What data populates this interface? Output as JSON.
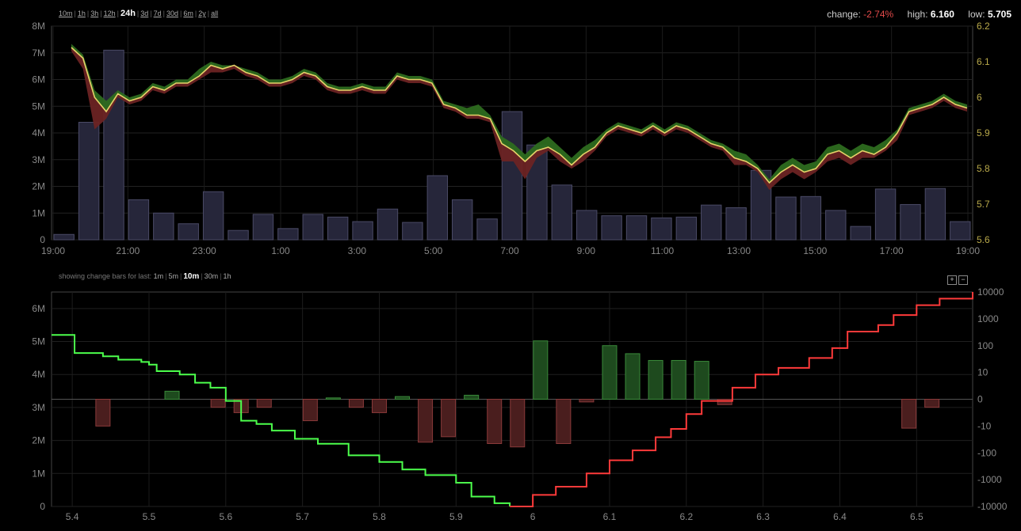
{
  "range_selector": {
    "prefix": "",
    "options": [
      "10m",
      "1h",
      "3h",
      "12h",
      "24h",
      "3d",
      "7d",
      "30d",
      "6m",
      "2y",
      "all"
    ],
    "active": "24h"
  },
  "stats": {
    "change_label": "change:",
    "change_value": "-2.74%",
    "high_label": "high:",
    "high_value": "6.160",
    "low_label": "low:",
    "low_value": "5.705"
  },
  "change_bars": {
    "label": "showing change bars for last:",
    "options": [
      "1m",
      "5m",
      "10m",
      "30m",
      "1h"
    ],
    "active": "10m"
  },
  "zoom": {
    "plus": "+",
    "minus": "−"
  },
  "colors": {
    "price_line": "#e6d36a",
    "band_up": "#2d6b1f",
    "band_down": "#6b2323",
    "volume_bar": "#26263a",
    "bid_line": "#4cff4c",
    "ask_line": "#ff3a3a",
    "change_up": "#1e4a1e",
    "change_down": "#4a1e1e"
  },
  "chart_data": [
    {
      "type": "line",
      "title": "",
      "series_kind": "price + volume",
      "x_ticks": [
        "19:00",
        "21:00",
        "23:00",
        "1:00",
        "3:00",
        "5:00",
        "7:00",
        "9:00",
        "11:00",
        "13:00",
        "15:00",
        "17:00",
        "19:00"
      ],
      "volume_axis_ticks": [
        "0",
        "1M",
        "2M",
        "3M",
        "4M",
        "5M",
        "6M",
        "7M",
        "8M"
      ],
      "price_axis_ticks": [
        "5.6",
        "5.7",
        "5.8",
        "5.9",
        "6",
        "6.1",
        "6.2"
      ],
      "volume_ylim": [
        0,
        8000000
      ],
      "price_ylim": [
        5.6,
        6.2
      ],
      "volume_values": [
        0.2,
        4.4,
        7.1,
        1.5,
        1.0,
        0.6,
        1.8,
        0.35,
        0.95,
        0.42,
        0.95,
        0.85,
        0.68,
        1.15,
        0.65,
        2.4,
        1.5,
        0.78,
        4.8,
        3.55,
        2.05,
        1.1,
        0.9,
        0.9,
        0.82,
        0.85,
        1.3,
        1.2,
        2.6,
        1.6,
        1.62,
        1.1,
        0.5,
        1.9,
        1.32,
        1.92,
        0.68
      ],
      "price_values": [
        6.14,
        6.11,
        6.0,
        5.96,
        6.01,
        5.99,
        6.0,
        6.03,
        6.02,
        6.04,
        6.04,
        6.06,
        6.09,
        6.08,
        6.09,
        6.07,
        6.06,
        6.04,
        6.04,
        6.05,
        6.07,
        6.06,
        6.03,
        6.02,
        6.02,
        6.03,
        6.02,
        6.02,
        6.06,
        6.05,
        6.05,
        6.04,
        5.98,
        5.97,
        5.95,
        5.95,
        5.94,
        5.87,
        5.85,
        5.82,
        5.85,
        5.86,
        5.84,
        5.81,
        5.84,
        5.86,
        5.9,
        5.92,
        5.91,
        5.9,
        5.92,
        5.9,
        5.92,
        5.91,
        5.89,
        5.87,
        5.86,
        5.83,
        5.82,
        5.8,
        5.76,
        5.79,
        5.81,
        5.79,
        5.8,
        5.84,
        5.85,
        5.83,
        5.85,
        5.84,
        5.86,
        5.9,
        5.96,
        5.97,
        5.98,
        6.0,
        5.98,
        5.97
      ],
      "band_high": [
        6.15,
        6.12,
        6.02,
        5.99,
        6.02,
        6.0,
        6.01,
        6.04,
        6.03,
        6.05,
        6.05,
        6.08,
        6.1,
        6.09,
        6.09,
        6.08,
        6.07,
        6.05,
        6.05,
        6.06,
        6.08,
        6.07,
        6.04,
        6.03,
        6.03,
        6.04,
        6.03,
        6.03,
        6.07,
        6.06,
        6.06,
        6.05,
        5.99,
        5.98,
        5.97,
        5.98,
        5.95,
        5.89,
        5.87,
        5.84,
        5.87,
        5.89,
        5.86,
        5.83,
        5.86,
        5.88,
        5.91,
        5.93,
        5.92,
        5.91,
        5.93,
        5.91,
        5.93,
        5.92,
        5.9,
        5.88,
        5.87,
        5.85,
        5.84,
        5.81,
        5.77,
        5.81,
        5.83,
        5.81,
        5.82,
        5.86,
        5.87,
        5.85,
        5.87,
        5.86,
        5.88,
        5.91,
        5.97,
        5.98,
        5.99,
        6.01,
        5.99,
        5.98
      ],
      "band_low": [
        6.13,
        6.08,
        5.91,
        5.94,
        6.0,
        5.98,
        5.99,
        6.02,
        6.01,
        6.03,
        6.03,
        6.05,
        6.07,
        6.07,
        6.08,
        6.06,
        6.05,
        6.03,
        6.03,
        6.04,
        6.06,
        6.05,
        6.02,
        6.01,
        6.01,
        6.02,
        6.01,
        6.01,
        6.05,
        6.04,
        6.04,
        6.03,
        5.97,
        5.96,
        5.94,
        5.94,
        5.93,
        5.82,
        5.82,
        5.77,
        5.83,
        5.85,
        5.82,
        5.8,
        5.82,
        5.85,
        5.89,
        5.91,
        5.9,
        5.89,
        5.91,
        5.89,
        5.91,
        5.9,
        5.88,
        5.86,
        5.85,
        5.81,
        5.81,
        5.79,
        5.74,
        5.77,
        5.79,
        5.77,
        5.79,
        5.82,
        5.83,
        5.81,
        5.83,
        5.83,
        5.85,
        5.88,
        5.95,
        5.96,
        5.97,
        5.99,
        5.97,
        5.96
      ]
    },
    {
      "type": "bar",
      "title": "",
      "series_kind": "order book depth + price-level change bars",
      "x_ticks": [
        "5.4",
        "5.5",
        "5.6",
        "5.7",
        "5.8",
        "5.9",
        "6",
        "6.1",
        "6.2",
        "6.3",
        "6.4",
        "6.5"
      ],
      "xlim": [
        5.373,
        5.573
      ],
      "left_axis_ticks": [
        "0",
        "1M",
        "2M",
        "3M",
        "4M",
        "5M",
        "6M"
      ],
      "right_axis_ticks": [
        "-10000",
        "-1000",
        "-100",
        "-10",
        "0",
        "10",
        "100",
        "1000",
        "10000"
      ],
      "depth_ylim": [
        0,
        6500000
      ],
      "bid_depth": [
        [
          5.373,
          5.2
        ],
        [
          5.39,
          5.2
        ],
        [
          5.403,
          4.65
        ],
        [
          5.44,
          4.55
        ],
        [
          5.46,
          4.45
        ],
        [
          5.49,
          4.38
        ],
        [
          5.5,
          4.3
        ],
        [
          5.51,
          4.1
        ],
        [
          5.54,
          4.0
        ],
        [
          5.56,
          3.75
        ],
        [
          5.58,
          3.6
        ],
        [
          5.6,
          3.2
        ],
        [
          5.62,
          2.6
        ],
        [
          5.64,
          2.5
        ],
        [
          5.66,
          2.3
        ],
        [
          5.69,
          2.05
        ],
        [
          5.72,
          1.9
        ],
        [
          5.76,
          1.55
        ],
        [
          5.8,
          1.35
        ],
        [
          5.83,
          1.12
        ],
        [
          5.86,
          0.95
        ],
        [
          5.9,
          0.72
        ],
        [
          5.92,
          0.3
        ],
        [
          5.95,
          0.1
        ],
        [
          5.97,
          0.0
        ]
      ],
      "ask_depth": [
        [
          5.97,
          0.0
        ],
        [
          6.0,
          0.35
        ],
        [
          6.03,
          0.6
        ],
        [
          6.07,
          1.0
        ],
        [
          6.1,
          1.4
        ],
        [
          6.13,
          1.7
        ],
        [
          6.16,
          2.1
        ],
        [
          6.18,
          2.35
        ],
        [
          6.2,
          2.8
        ],
        [
          6.22,
          3.2
        ],
        [
          6.26,
          3.6
        ],
        [
          6.29,
          4.0
        ],
        [
          6.32,
          4.2
        ],
        [
          6.36,
          4.5
        ],
        [
          6.39,
          4.8
        ],
        [
          6.41,
          5.3
        ],
        [
          6.45,
          5.5
        ],
        [
          6.47,
          5.8
        ],
        [
          6.5,
          6.1
        ],
        [
          6.53,
          6.3
        ],
        [
          6.573,
          6.5
        ]
      ],
      "change_bars": [
        {
          "price": 5.44,
          "change": -10
        },
        {
          "price": 5.53,
          "change": 3
        },
        {
          "price": 5.59,
          "change": -3
        },
        {
          "price": 5.62,
          "change": -5
        },
        {
          "price": 5.65,
          "change": -3
        },
        {
          "price": 5.71,
          "change": -8
        },
        {
          "price": 5.74,
          "change": 0.5
        },
        {
          "price": 5.77,
          "change": -3
        },
        {
          "price": 5.8,
          "change": -5
        },
        {
          "price": 5.83,
          "change": 1
        },
        {
          "price": 5.86,
          "change": -40
        },
        {
          "price": 5.89,
          "change": -25
        },
        {
          "price": 5.92,
          "change": 1.5
        },
        {
          "price": 5.95,
          "change": -45
        },
        {
          "price": 5.98,
          "change": -60
        },
        {
          "price": 6.01,
          "change": 150
        },
        {
          "price": 6.04,
          "change": -45
        },
        {
          "price": 6.07,
          "change": -1
        },
        {
          "price": 6.1,
          "change": 100
        },
        {
          "price": 6.13,
          "change": 50
        },
        {
          "price": 6.16,
          "change": 28
        },
        {
          "price": 6.19,
          "change": 28
        },
        {
          "price": 6.22,
          "change": 26
        },
        {
          "price": 6.25,
          "change": -2
        },
        {
          "price": 6.49,
          "change": -12
        },
        {
          "price": 6.52,
          "change": -3
        }
      ]
    }
  ]
}
